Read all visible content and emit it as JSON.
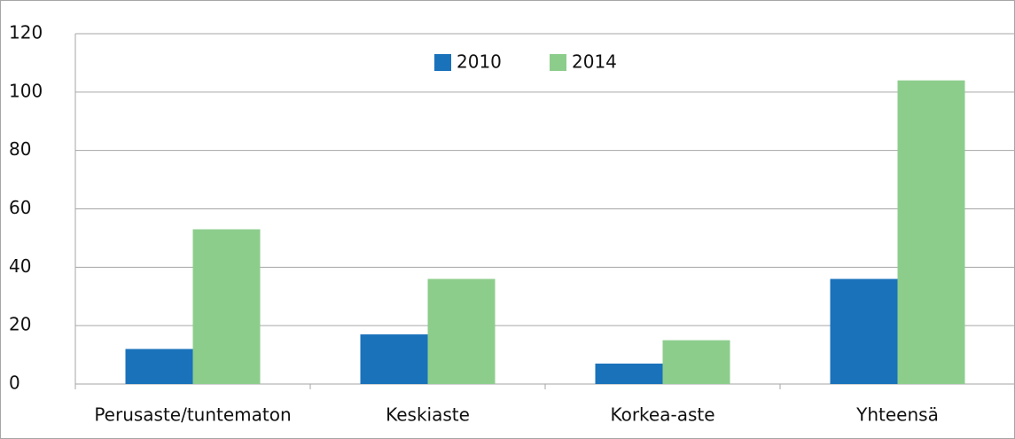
{
  "chart_data": {
    "type": "bar",
    "categories": [
      "Perusaste/tuntematon",
      "Keskiaste",
      "Korkea-aste",
      "Yhteensä"
    ],
    "series": [
      {
        "name": "2010",
        "color": "#1a72bb",
        "values": [
          12,
          17,
          7,
          36
        ]
      },
      {
        "name": "2014",
        "color": "#8dcd8c",
        "values": [
          53,
          36,
          15,
          104
        ]
      }
    ],
    "ylim": [
      0,
      120
    ],
    "yticks": [
      0,
      20,
      40,
      60,
      80,
      100,
      120
    ],
    "grid": true,
    "legend": "top"
  }
}
